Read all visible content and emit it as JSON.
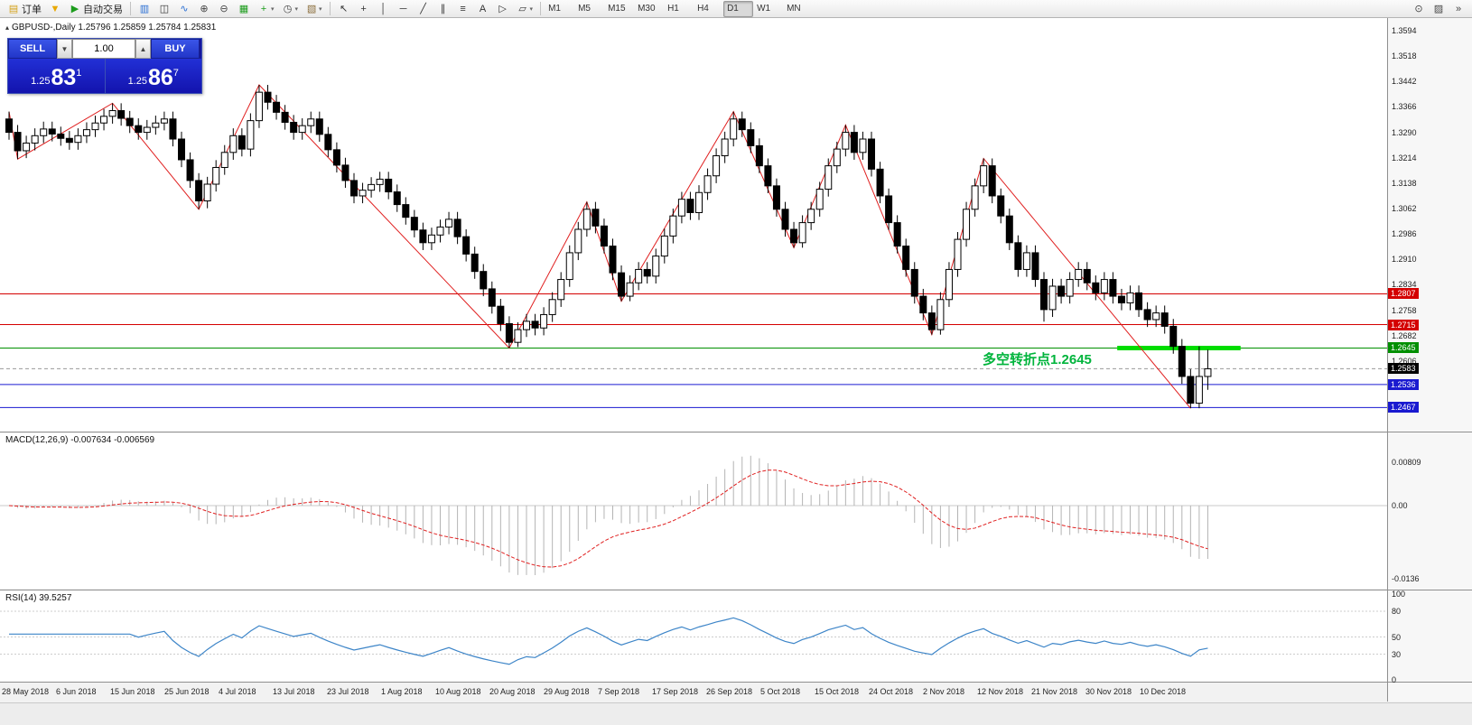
{
  "toolbar": {
    "caret_glyph": "▾",
    "groups": [
      {
        "name": "trade-group",
        "items": [
          {
            "name": "new-order-button",
            "glyph": "▤",
            "glyph_color": "#d4a017",
            "label": "订单"
          },
          {
            "name": "funnel-button",
            "glyph": "▼",
            "glyph_color": "#e8a800"
          },
          {
            "name": "autotrade-button",
            "glyph": "▶",
            "glyph_color": "#1c9c1c",
            "label": "自动交易"
          }
        ]
      },
      {
        "name": "chart-group",
        "items": [
          {
            "name": "bar-chart-button",
            "glyph": "▥",
            "glyph_color": "#2a6fd4"
          },
          {
            "name": "candlestick-button",
            "glyph": "◫",
            "glyph_color": "#333333"
          },
          {
            "name": "line-chart-button",
            "glyph": "∿",
            "glyph_color": "#2a6fd4"
          },
          {
            "name": "zoom-in-button",
            "glyph": "⊕",
            "glyph_color": "#444444"
          },
          {
            "name": "zoom-out-button",
            "glyph": "⊖",
            "glyph_color": "#444444"
          },
          {
            "name": "tile-windows-button",
            "glyph": "▦",
            "glyph_color": "#1c9c1c"
          },
          {
            "name": "indicators-button",
            "glyph": "+",
            "glyph_color": "#1c9c1c",
            "caret": true
          },
          {
            "name": "period-button",
            "glyph": "◷",
            "glyph_color": "#444444",
            "caret": true
          },
          {
            "name": "template-button",
            "glyph": "▧",
            "glyph_color": "#8a6d3b",
            "caret": true
          }
        ]
      },
      {
        "name": "tools-group",
        "items": [
          {
            "name": "cursor-button",
            "glyph": "↖",
            "glyph_color": "#333333"
          },
          {
            "name": "crosshair-button",
            "glyph": "+",
            "glyph_color": "#333333"
          },
          {
            "name": "vertical-line-button",
            "glyph": "│",
            "glyph_color": "#333333"
          },
          {
            "name": "horizontal-line-button",
            "glyph": "─",
            "glyph_color": "#333333"
          },
          {
            "name": "trendline-button",
            "glyph": "╱",
            "glyph_color": "#333333"
          },
          {
            "name": "channel-button",
            "glyph": "∥",
            "glyph_color": "#333333"
          },
          {
            "name": "fibonacci-button",
            "glyph": "≡",
            "glyph_color": "#333333"
          },
          {
            "name": "text-button",
            "glyph": "A",
            "glyph_color": "#333333"
          },
          {
            "name": "arrow-button",
            "glyph": "▷",
            "glyph_color": "#333333"
          },
          {
            "name": "shapes-button",
            "glyph": "▱",
            "glyph_color": "#333333",
            "caret": true
          }
        ]
      },
      {
        "name": "timeframe-group",
        "items": [
          {
            "name": "timeframe-m1-button",
            "label": "M1"
          },
          {
            "name": "timeframe-m5-button",
            "label": "M5"
          },
          {
            "name": "timeframe-m15-button",
            "label": "M15"
          },
          {
            "name": "timeframe-m30-button",
            "label": "M30"
          },
          {
            "name": "timeframe-h1-button",
            "label": "H1"
          },
          {
            "name": "timeframe-h4-button",
            "label": "H4"
          },
          {
            "name": "timeframe-d1-button",
            "label": "D1"
          },
          {
            "name": "timeframe-w1-button",
            "label": "W1"
          },
          {
            "name": "timeframe-mn-button",
            "label": "MN"
          }
        ]
      }
    ],
    "active_timeframe": "D1",
    "right_icons": [
      {
        "name": "search-button",
        "glyph": "⊙",
        "glyph_color": "#444444"
      },
      {
        "name": "data-window-button",
        "glyph": "▨",
        "glyph_color": "#444444"
      },
      {
        "name": "overflow-button",
        "glyph": "»",
        "glyph_color": "#444444"
      }
    ]
  },
  "chart_header": {
    "marker": "▴",
    "symbol": "GBPUSD-,Daily",
    "ohlc": "1.25796 1.25859 1.25784 1.25831"
  },
  "trade_panel": {
    "sell_label": "SELL",
    "buy_label": "BUY",
    "volume": "1.00",
    "spin_down": "▼",
    "spin_up": "▲",
    "bid": {
      "prefix": "1.25",
      "big": "83",
      "sup": "1"
    },
    "ask": {
      "prefix": "1.25",
      "big": "86",
      "sup": "7"
    },
    "colors": {
      "panel_blue": "#1313ad",
      "button_blue": "#2a3fd8"
    }
  },
  "annotation": {
    "text": "多空转折点1.2645",
    "color": "#00b43c"
  },
  "panels": {
    "macd_label": "MACD(12,26,9) -0.007634 -0.006569",
    "rsi_label": "RSI(14) 39.5257"
  },
  "price_axis": {
    "labels": [
      "1.3594",
      "1.3518",
      "1.3442",
      "1.3366",
      "1.3290",
      "1.3214",
      "1.3138",
      "1.3062",
      "1.2986",
      "1.2910",
      "1.2834",
      "1.2758",
      "1.2682",
      "1.2606",
      "1.2530"
    ]
  },
  "macd_axis": [
    {
      "text": "0.00809",
      "value": 0.00809
    },
    {
      "text": "0.00",
      "value": 0
    },
    {
      "text": "-0.0136",
      "value": -0.0136
    }
  ],
  "rsi_axis": [
    {
      "text": "100",
      "value": 100
    },
    {
      "text": "80",
      "value": 80
    },
    {
      "text": "50",
      "value": 50
    },
    {
      "text": "30",
      "value": 30
    },
    {
      "text": "0",
      "value": 0
    }
  ],
  "date_axis": [
    "28 May 2018",
    "6 Jun 2018",
    "15 Jun 2018",
    "25 Jun 2018",
    "4 Jul 2018",
    "13 Jul 2018",
    "23 Jul 2018",
    "1 Aug 2018",
    "10 Aug 2018",
    "20 Aug 2018",
    "29 Aug 2018",
    "7 Sep 2018",
    "17 Sep 2018",
    "26 Sep 2018",
    "5 Oct 2018",
    "15 Oct 2018",
    "24 Oct 2018",
    "2 Nov 2018",
    "12 Nov 2018",
    "21 Nov 2018",
    "30 Nov 2018",
    "10 Dec 2018"
  ],
  "chart_data": {
    "type": "candlestick",
    "symbol": "GBPUSD",
    "timeframe": "Daily",
    "ohlc_current": {
      "open": 1.25796,
      "high": 1.25859,
      "low": 1.25784,
      "close": 1.25831
    },
    "bid": 1.25831,
    "ask": 1.25867,
    "candles": [
      [
        1.333,
        1.3352,
        1.3268,
        1.329
      ],
      [
        1.329,
        1.3312,
        1.321,
        1.3235
      ],
      [
        1.3235,
        1.328,
        1.3213,
        1.3258
      ],
      [
        1.3258,
        1.3302,
        1.3236,
        1.328
      ],
      [
        1.328,
        1.3322,
        1.3258,
        1.33
      ],
      [
        1.33,
        1.3322,
        1.3263,
        1.3285
      ],
      [
        1.3285,
        1.3307,
        1.325,
        1.3272
      ],
      [
        1.3272,
        1.3294,
        1.3238,
        1.326
      ],
      [
        1.326,
        1.3302,
        1.3238,
        1.328
      ],
      [
        1.328,
        1.332,
        1.3258,
        1.3298
      ],
      [
        1.3298,
        1.334,
        1.3276,
        1.3318
      ],
      [
        1.3318,
        1.336,
        1.3296,
        1.3338
      ],
      [
        1.3338,
        1.3377,
        1.3316,
        1.3355
      ],
      [
        1.3355,
        1.3377,
        1.331,
        1.3332
      ],
      [
        1.3332,
        1.3354,
        1.3288,
        1.331
      ],
      [
        1.331,
        1.3332,
        1.3268,
        1.329
      ],
      [
        1.329,
        1.3327,
        1.3268,
        1.3305
      ],
      [
        1.3305,
        1.334,
        1.3283,
        1.3318
      ],
      [
        1.3318,
        1.3352,
        1.3296,
        1.333
      ],
      [
        1.333,
        1.3352,
        1.3248,
        1.327
      ],
      [
        1.327,
        1.3292,
        1.3186,
        1.3208
      ],
      [
        1.3208,
        1.323,
        1.3124,
        1.3146
      ],
      [
        1.3146,
        1.3168,
        1.306,
        1.3085
      ],
      [
        1.3085,
        1.3157,
        1.3063,
        1.3135
      ],
      [
        1.3135,
        1.3207,
        1.3113,
        1.3185
      ],
      [
        1.3185,
        1.3252,
        1.3163,
        1.323
      ],
      [
        1.323,
        1.3302,
        1.3208,
        1.328
      ],
      [
        1.328,
        1.3302,
        1.3218,
        1.324
      ],
      [
        1.324,
        1.3347,
        1.3218,
        1.3325
      ],
      [
        1.3325,
        1.3432,
        1.3303,
        1.341
      ],
      [
        1.341,
        1.3432,
        1.3358,
        1.338
      ],
      [
        1.338,
        1.3402,
        1.3328,
        1.335
      ],
      [
        1.335,
        1.3372,
        1.3298,
        1.332
      ],
      [
        1.332,
        1.3342,
        1.3268,
        1.329
      ],
      [
        1.329,
        1.3332,
        1.3268,
        1.331
      ],
      [
        1.331,
        1.3352,
        1.3288,
        1.333
      ],
      [
        1.333,
        1.3352,
        1.3262,
        1.3284
      ],
      [
        1.3284,
        1.3306,
        1.3216,
        1.3238
      ],
      [
        1.3238,
        1.326,
        1.317,
        1.3192
      ],
      [
        1.3192,
        1.3214,
        1.3124,
        1.3146
      ],
      [
        1.3146,
        1.3168,
        1.3078,
        1.31
      ],
      [
        1.31,
        1.3139,
        1.3078,
        1.3117
      ],
      [
        1.3117,
        1.3156,
        1.3095,
        1.3134
      ],
      [
        1.3134,
        1.3172,
        1.3112,
        1.315
      ],
      [
        1.315,
        1.3172,
        1.309,
        1.3112
      ],
      [
        1.3112,
        1.3134,
        1.3052,
        1.3074
      ],
      [
        1.3074,
        1.3096,
        1.3014,
        1.3036
      ],
      [
        1.3036,
        1.3058,
        1.2976,
        1.2998
      ],
      [
        1.2998,
        1.302,
        1.2938,
        1.296
      ],
      [
        1.296,
        1.3005,
        1.2938,
        1.2983
      ],
      [
        1.2983,
        1.3029,
        1.2961,
        1.3007
      ],
      [
        1.3007,
        1.3052,
        1.2985,
        1.303
      ],
      [
        1.303,
        1.3052,
        1.2956,
        1.2978
      ],
      [
        1.2978,
        1.3,
        1.2904,
        1.2926
      ],
      [
        1.2926,
        1.2948,
        1.2852,
        1.2874
      ],
      [
        1.2874,
        1.2896,
        1.28,
        1.2822
      ],
      [
        1.2822,
        1.2844,
        1.2748,
        1.277
      ],
      [
        1.277,
        1.2792,
        1.2696,
        1.2718
      ],
      [
        1.2718,
        1.274,
        1.2645,
        1.2662
      ],
      [
        1.2662,
        1.2722,
        1.2648,
        1.27
      ],
      [
        1.27,
        1.2747,
        1.2678,
        1.2725
      ],
      [
        1.2725,
        1.2747,
        1.2683,
        1.2705
      ],
      [
        1.2705,
        1.2767,
        1.2683,
        1.2745
      ],
      [
        1.2745,
        1.2812,
        1.2723,
        1.279
      ],
      [
        1.279,
        1.2872,
        1.2768,
        1.285
      ],
      [
        1.285,
        1.2952,
        1.2828,
        1.293
      ],
      [
        1.293,
        1.3022,
        1.2908,
        1.3
      ],
      [
        1.3,
        1.3082,
        1.2978,
        1.306
      ],
      [
        1.306,
        1.3082,
        1.2988,
        1.301
      ],
      [
        1.301,
        1.3032,
        1.2928,
        1.295
      ],
      [
        1.295,
        1.2972,
        1.2848,
        1.287
      ],
      [
        1.287,
        1.2892,
        1.2785,
        1.28
      ],
      [
        1.28,
        1.2862,
        1.2785,
        1.284
      ],
      [
        1.284,
        1.2902,
        1.2818,
        1.288
      ],
      [
        1.288,
        1.2902,
        1.2838,
        1.286
      ],
      [
        1.286,
        1.2942,
        1.2838,
        1.292
      ],
      [
        1.292,
        1.3002,
        1.2898,
        1.298
      ],
      [
        1.298,
        1.3062,
        1.2958,
        1.304
      ],
      [
        1.304,
        1.3112,
        1.3018,
        1.309
      ],
      [
        1.309,
        1.3112,
        1.3028,
        1.305
      ],
      [
        1.305,
        1.3132,
        1.3028,
        1.311
      ],
      [
        1.311,
        1.3182,
        1.3088,
        1.316
      ],
      [
        1.316,
        1.3242,
        1.3138,
        1.322
      ],
      [
        1.322,
        1.3292,
        1.3198,
        1.327
      ],
      [
        1.327,
        1.3352,
        1.3248,
        1.333
      ],
      [
        1.333,
        1.3352,
        1.3276,
        1.3298
      ],
      [
        1.3298,
        1.332,
        1.3228,
        1.325
      ],
      [
        1.325,
        1.3272,
        1.3168,
        1.319
      ],
      [
        1.319,
        1.3212,
        1.3108,
        1.313
      ],
      [
        1.313,
        1.3152,
        1.3038,
        1.306
      ],
      [
        1.306,
        1.3082,
        1.2978,
        1.3
      ],
      [
        1.3,
        1.3022,
        1.2945,
        1.296
      ],
      [
        1.296,
        1.3042,
        1.2945,
        1.302
      ],
      [
        1.302,
        1.3082,
        1.2998,
        1.306
      ],
      [
        1.306,
        1.3142,
        1.3038,
        1.312
      ],
      [
        1.312,
        1.3212,
        1.3098,
        1.319
      ],
      [
        1.319,
        1.3262,
        1.3168,
        1.324
      ],
      [
        1.324,
        1.3312,
        1.3218,
        1.329
      ],
      [
        1.329,
        1.3312,
        1.3208,
        1.323
      ],
      [
        1.323,
        1.3292,
        1.3208,
        1.327
      ],
      [
        1.327,
        1.3292,
        1.3158,
        1.318
      ],
      [
        1.318,
        1.3202,
        1.3078,
        1.31
      ],
      [
        1.31,
        1.3122,
        1.2998,
        1.302
      ],
      [
        1.302,
        1.3042,
        1.2928,
        1.295
      ],
      [
        1.295,
        1.2972,
        1.2858,
        1.288
      ],
      [
        1.288,
        1.2902,
        1.2778,
        1.28
      ],
      [
        1.28,
        1.2822,
        1.2728,
        1.275
      ],
      [
        1.275,
        1.2772,
        1.2685,
        1.27
      ],
      [
        1.27,
        1.2812,
        1.2685,
        1.279
      ],
      [
        1.279,
        1.2902,
        1.2768,
        1.288
      ],
      [
        1.288,
        1.2992,
        1.2858,
        1.297
      ],
      [
        1.297,
        1.3082,
        1.2948,
        1.306
      ],
      [
        1.306,
        1.3152,
        1.3038,
        1.313
      ],
      [
        1.313,
        1.3212,
        1.3108,
        1.319
      ],
      [
        1.319,
        1.3212,
        1.3078,
        1.31
      ],
      [
        1.31,
        1.3122,
        1.3018,
        1.304
      ],
      [
        1.304,
        1.3062,
        1.2938,
        1.296
      ],
      [
        1.296,
        1.2982,
        1.2858,
        1.288
      ],
      [
        1.288,
        1.2952,
        1.2858,
        1.293
      ],
      [
        1.293,
        1.2952,
        1.2828,
        1.285
      ],
      [
        1.285,
        1.2872,
        1.2724,
        1.276
      ],
      [
        1.276,
        1.2852,
        1.2738,
        1.283
      ],
      [
        1.283,
        1.2852,
        1.2778,
        1.28
      ],
      [
        1.28,
        1.2872,
        1.2778,
        1.285
      ],
      [
        1.285,
        1.2902,
        1.2828,
        1.288
      ],
      [
        1.288,
        1.2902,
        1.2818,
        1.284
      ],
      [
        1.284,
        1.2862,
        1.2788,
        1.281
      ],
      [
        1.281,
        1.2872,
        1.2788,
        1.285
      ],
      [
        1.285,
        1.2872,
        1.2778,
        1.28
      ],
      [
        1.28,
        1.2822,
        1.2758,
        1.278
      ],
      [
        1.278,
        1.2832,
        1.2758,
        1.281
      ],
      [
        1.281,
        1.2832,
        1.2738,
        1.276
      ],
      [
        1.276,
        1.2782,
        1.2708,
        1.273
      ],
      [
        1.273,
        1.2772,
        1.2708,
        1.275
      ],
      [
        1.275,
        1.2772,
        1.2688,
        1.271
      ],
      [
        1.271,
        1.2732,
        1.2628,
        1.265
      ],
      [
        1.265,
        1.2672,
        1.2538,
        1.256
      ],
      [
        1.256,
        1.2582,
        1.2465,
        1.248
      ],
      [
        1.248,
        1.265,
        1.2465,
        1.256
      ],
      [
        1.256,
        1.264,
        1.252,
        1.2583
      ]
    ],
    "zigzag": [
      [
        0,
        1.3352
      ],
      [
        1,
        1.321
      ],
      [
        12,
        1.3377
      ],
      [
        22,
        1.306
      ],
      [
        29,
        1.3432
      ],
      [
        58,
        1.2645
      ],
      [
        67,
        1.3082
      ],
      [
        71,
        1.2785
      ],
      [
        84,
        1.3352
      ],
      [
        91,
        1.2945
      ],
      [
        97,
        1.3312
      ],
      [
        107,
        1.2685
      ],
      [
        113,
        1.3212
      ],
      [
        137,
        1.2465
      ]
    ],
    "hlines": [
      {
        "price": 1.2807,
        "color": "#d40000",
        "text": "1.2807"
      },
      {
        "price": 1.2715,
        "color": "#d40000",
        "text": "1.2715"
      },
      {
        "price": 1.2645,
        "color": "#008f00",
        "text": "1.2645"
      },
      {
        "price": 1.2536,
        "color": "#1a1ad0",
        "text": "1.2536"
      },
      {
        "price": 1.2467,
        "color": "#1a1ad0",
        "text": "1.2467"
      }
    ],
    "green_segment": {
      "price": 1.2645,
      "bar_start": 128.5,
      "bar_end": 142.8,
      "color": "#00dd00",
      "width": 5
    },
    "current_tag": {
      "text": "1.2583",
      "price": 1.25831,
      "bg": "#000000"
    },
    "indicators": {
      "macd": {
        "fast": 12,
        "slow": 26,
        "signal": 9,
        "current_main": -0.007634,
        "current_signal": -0.006569
      },
      "rsi": {
        "period": 14,
        "current": 39.5257,
        "levels": [
          80,
          50,
          30
        ]
      }
    }
  }
}
